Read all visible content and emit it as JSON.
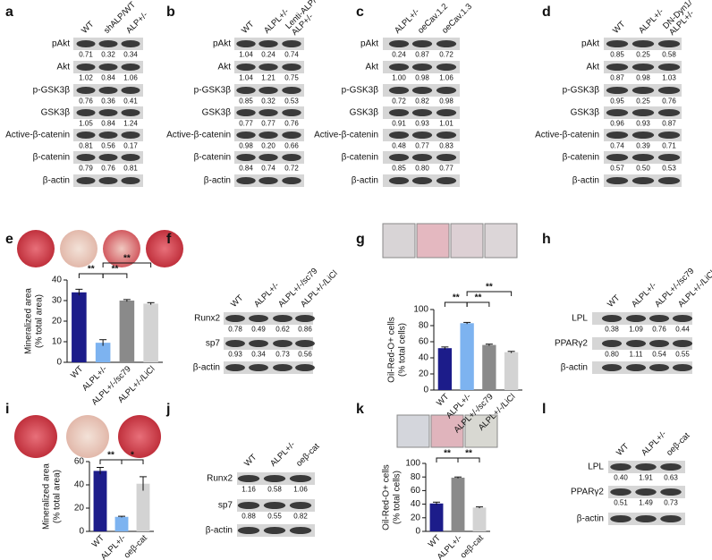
{
  "blots": [
    {
      "panel": "a",
      "lanes": [
        "WT",
        "shALP/WT",
        "ALP+/-"
      ],
      "rows": [
        {
          "label": "pAkt",
          "values": [
            "0.71",
            "0.32",
            "0.34"
          ]
        },
        {
          "label": "Akt",
          "values": [
            "1.02",
            "0.84",
            "1.06"
          ]
        },
        {
          "label": "p-GSK3β",
          "values": [
            "0.76",
            "0.36",
            "0.41"
          ]
        },
        {
          "label": "GSK3β",
          "values": [
            "1.05",
            "0.84",
            "1.24"
          ]
        },
        {
          "label": "Active-β-catenin",
          "values": [
            "0.81",
            "0.56",
            "0.17"
          ]
        },
        {
          "label": "β-catenin",
          "values": [
            "0.79",
            "0.76",
            "0.81"
          ]
        },
        {
          "label": "β-actin"
        }
      ]
    },
    {
      "panel": "b",
      "lanes": [
        "WT",
        "ALPL+/-",
        [
          "Lenti-ALP/",
          "ALP+/-"
        ]
      ],
      "rows": [
        {
          "label": "pAkt",
          "values": [
            "1.04",
            "0.24",
            "0.74"
          ]
        },
        {
          "label": "Akt",
          "values": [
            "1.04",
            "1.21",
            "0.75"
          ]
        },
        {
          "label": "p-GSK3β",
          "values": [
            "0.85",
            "0.32",
            "0.53"
          ]
        },
        {
          "label": "GSK3β",
          "values": [
            "0.77",
            "0.77",
            "0.76"
          ]
        },
        {
          "label": "Active-β-catenin",
          "values": [
            "0.98",
            "0.20",
            "0.66"
          ]
        },
        {
          "label": "β-catenin",
          "values": [
            "0.84",
            "0.74",
            "0.72"
          ]
        },
        {
          "label": "β-actin"
        }
      ]
    },
    {
      "panel": "c",
      "lanes": [
        "ALPL+/-",
        "oeCav.1.2",
        "oeCav.1.3"
      ],
      "rows": [
        {
          "label": "pAkt",
          "values": [
            "0.24",
            "0.87",
            "0.72"
          ]
        },
        {
          "label": "Akt",
          "values": [
            "1.00",
            "0.98",
            "1.06"
          ]
        },
        {
          "label": "p-GSK3β",
          "values": [
            "0.72",
            "0.82",
            "0.98"
          ]
        },
        {
          "label": "GSK3β",
          "values": [
            "0.91",
            "0.93",
            "1.01"
          ]
        },
        {
          "label": "Active-β-catenin",
          "values": [
            "0.48",
            "0.77",
            "0.83"
          ]
        },
        {
          "label": "β-catenin",
          "values": [
            "0.85",
            "0.80",
            "0.77"
          ]
        },
        {
          "label": "β-actin"
        }
      ]
    },
    {
      "panel": "d",
      "lanes": [
        "WT",
        "ALPL+/-",
        [
          "DN-Dyn1/",
          "ALPL+/-"
        ]
      ],
      "rows": [
        {
          "label": "pAkt",
          "values": [
            "0.85",
            "0.25",
            "0.58"
          ]
        },
        {
          "label": "Akt",
          "values": [
            "0.87",
            "0.98",
            "1.03"
          ]
        },
        {
          "label": "p-GSK3β",
          "values": [
            "0.95",
            "0.25",
            "0.76"
          ]
        },
        {
          "label": "GSK3β",
          "values": [
            "0.96",
            "0.93",
            "0.87"
          ]
        },
        {
          "label": "Active-β-catenin",
          "values": [
            "0.74",
            "0.39",
            "0.71"
          ]
        },
        {
          "label": "β-catenin",
          "values": [
            "0.57",
            "0.50",
            "0.53"
          ]
        },
        {
          "label": "β-actin"
        }
      ]
    },
    {
      "panel": "f",
      "lanes": [
        "WT",
        "ALPL+/-",
        "ALPL+/-/sc79",
        "ALPL+/-/LiCl"
      ],
      "rows": [
        {
          "label": "Runx2",
          "values": [
            "0.78",
            "0.49",
            "0.62",
            "0.86"
          ]
        },
        {
          "label": "sp7",
          "values": [
            "0.93",
            "0.34",
            "0.73",
            "0.56"
          ]
        },
        {
          "label": "β-actin"
        }
      ]
    },
    {
      "panel": "h",
      "lanes": [
        "WT",
        "ALPL+/-",
        "ALPL+/-/sc79",
        "ALPL+/-/LiCl"
      ],
      "rows": [
        {
          "label": "LPL",
          "values": [
            "0.38",
            "1.09",
            "0.76",
            "0.44"
          ]
        },
        {
          "label": "PPARγ2",
          "values": [
            "0.80",
            "1.11",
            "0.54",
            "0.55"
          ]
        },
        {
          "label": "β-actin"
        }
      ]
    },
    {
      "panel": "j",
      "lanes": [
        "WT",
        "ALPL+/-",
        "oeβ-cat"
      ],
      "rows": [
        {
          "label": "Runx2",
          "values": [
            "1.16",
            "0.58",
            "1.06"
          ]
        },
        {
          "label": "sp7",
          "values": [
            "0.88",
            "0.55",
            "0.82"
          ]
        },
        {
          "label": "β-actin"
        }
      ]
    },
    {
      "panel": "l",
      "lanes": [
        "WT",
        "ALPL+/-",
        "oeβ-cat"
      ],
      "rows": [
        {
          "label": "LPL",
          "values": [
            "0.40",
            "1.91",
            "0.63"
          ]
        },
        {
          "label": "PPARγ2",
          "values": [
            "0.51",
            "1.49",
            "0.73"
          ]
        },
        {
          "label": "β-actin"
        }
      ]
    }
  ],
  "chart_data": [
    {
      "type": "bar",
      "panel": "e",
      "ylabel": [
        "Mineralized area",
        "(% total area)"
      ],
      "categories": [
        "WT",
        "ALPL+/-",
        "ALPL+/-/sc79",
        "ALPL+/-/LiCl"
      ],
      "values": [
        34,
        9.5,
        30,
        28.5
      ],
      "errors": [
        1.5,
        1.5,
        0.5,
        0.5
      ],
      "colors": [
        "#1c1c8a",
        "#7db3f0",
        "#8a8a8a",
        "#d3d3d3"
      ],
      "ylim": [
        0,
        40
      ],
      "yticks": [
        0,
        10,
        20,
        30,
        40
      ],
      "annotations": [
        "**",
        "**",
        "**"
      ]
    },
    {
      "type": "bar",
      "panel": "g",
      "ylabel": [
        "Oil-Red-O+ cells",
        "(% total cells)"
      ],
      "categories": [
        "WT",
        "ALPL+/-",
        "ALPL+/-/sc79",
        "ALPL+/-/LiCl"
      ],
      "values": [
        52,
        83,
        56,
        47
      ],
      "errors": [
        1.5,
        1,
        1,
        1
      ],
      "colors": [
        "#1c1c8a",
        "#7db3f0",
        "#8a8a8a",
        "#d3d3d3"
      ],
      "ylim": [
        0,
        100
      ],
      "yticks": [
        0,
        20,
        40,
        60,
        80,
        100
      ],
      "annotations": [
        "**",
        "**",
        "**"
      ]
    },
    {
      "type": "bar",
      "panel": "i",
      "ylabel": [
        "Mineralized area",
        "(% total area)"
      ],
      "categories": [
        "WT",
        "ALPL+/-",
        "oeβ-cat"
      ],
      "values": [
        52,
        12.5,
        41
      ],
      "errors": [
        3,
        0.5,
        6
      ],
      "colors": [
        "#1c1c8a",
        "#7db3f0",
        "#d3d3d3"
      ],
      "ylim": [
        0,
        60
      ],
      "yticks": [
        0,
        20,
        40,
        60
      ],
      "annotations": [
        "**",
        "*"
      ]
    },
    {
      "type": "bar",
      "panel": "k",
      "ylabel": [
        "Oil-Red-O+ cells",
        "(% total cells)"
      ],
      "categories": [
        "WT",
        "ALPL+/-",
        "oeβ-cat"
      ],
      "values": [
        41,
        79,
        35
      ],
      "errors": [
        2,
        1,
        1
      ],
      "colors": [
        "#1c1c8a",
        "#8a8a8a",
        "#d3d3d3"
      ],
      "ylim": [
        0,
        100
      ],
      "yticks": [
        0,
        20,
        40,
        60,
        80,
        100
      ],
      "annotations": [
        "**",
        "**"
      ]
    }
  ]
}
